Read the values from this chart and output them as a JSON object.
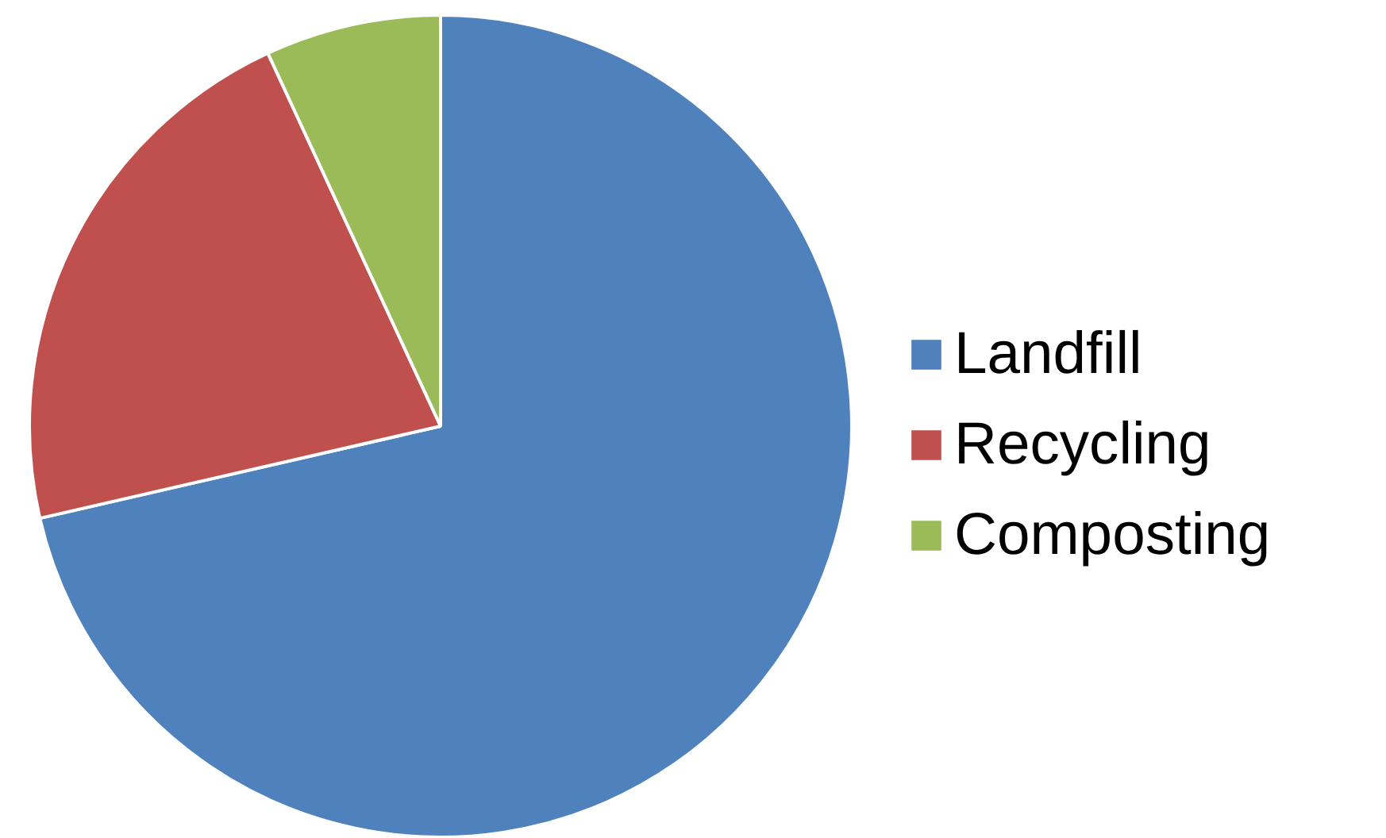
{
  "chart_data": {
    "type": "pie",
    "categories": [
      "Landfill",
      "Recycling",
      "Composting"
    ],
    "values": [
      71.4,
      21.7,
      6.9
    ],
    "colors": [
      "#4f81bd",
      "#c0504d",
      "#9bbb59"
    ],
    "legend": "right"
  }
}
